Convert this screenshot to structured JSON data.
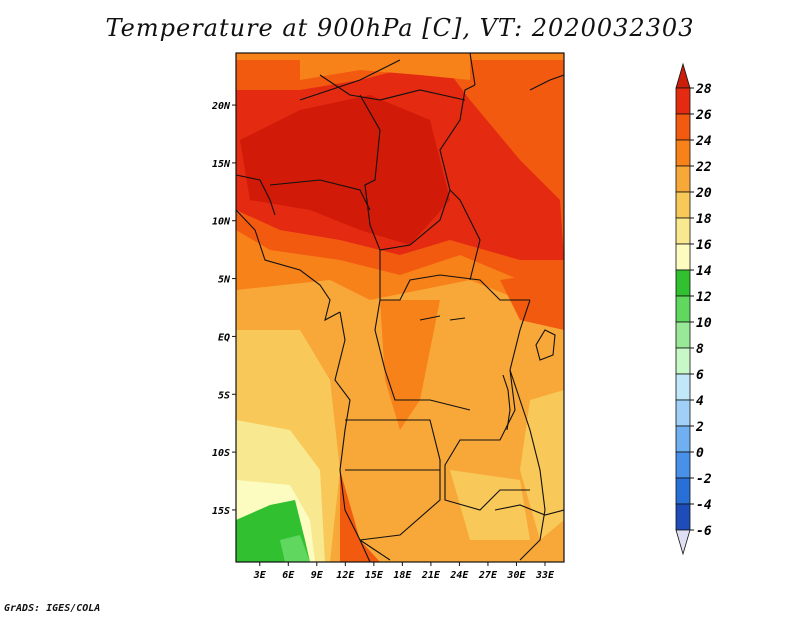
{
  "chart_data": {
    "type": "heatmap",
    "title": "Temperature at 900hPa [C], VT: 2020032303",
    "x_ticks": [
      "3E",
      "6E",
      "9E",
      "12E",
      "15E",
      "18E",
      "21E",
      "24E",
      "27E",
      "30E",
      "33E"
    ],
    "y_ticks": [
      "20N",
      "15N",
      "10N",
      "5N",
      "EQ",
      "5S",
      "10S",
      "15S"
    ],
    "x_tick_values": [
      3,
      6,
      9,
      12,
      15,
      18,
      21,
      24,
      27,
      30,
      33
    ],
    "y_tick_values": [
      20,
      15,
      10,
      5,
      0,
      -5,
      -10,
      -15
    ],
    "xlim": [
      0.5,
      35
    ],
    "ylim": [
      -19.5,
      24.5
    ],
    "colorbar": {
      "labels": [
        "28",
        "26",
        "24",
        "22",
        "20",
        "18",
        "16",
        "14",
        "12",
        "10",
        "8",
        "6",
        "4",
        "2",
        "0",
        "-2",
        "-4",
        "-6"
      ],
      "colors": [
        "#c81e0a",
        "#e42a10",
        "#f25a10",
        "#f8821a",
        "#f8a838",
        "#f8c858",
        "#f8e890",
        "#fcfcc0",
        "#30c030",
        "#60d860",
        "#98e898",
        "#c8f8c8",
        "#c0e8f8",
        "#a0d0f8",
        "#70b0f0",
        "#4890e8",
        "#2870d8",
        "#1e4cb8",
        "#142c8c",
        "#08105c",
        "#e0e0f4"
      ]
    },
    "fields": {
      "sahel_max": 28,
      "central_basin": 22,
      "south_west_coast": 16,
      "east_highlands": 20
    }
  },
  "credit": "GrADS: IGES/COLA"
}
